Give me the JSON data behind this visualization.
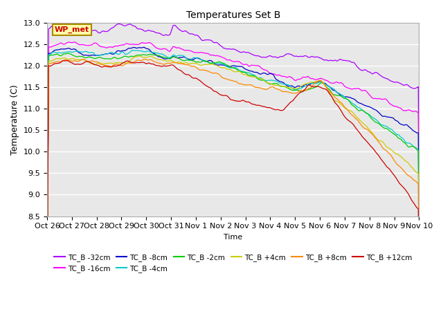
{
  "title": "Temperatures Set B",
  "xlabel": "Time",
  "ylabel": "Temperature (C)",
  "ylim": [
    8.5,
    13.0
  ],
  "background_color": "#ffffff",
  "plot_bg_color": "#e8e8e8",
  "grid_color": "#ffffff",
  "series": [
    {
      "label": "TC_B -32cm",
      "color": "#aa00ff"
    },
    {
      "label": "TC_B -16cm",
      "color": "#ff00ff"
    },
    {
      "label": "TC_B -8cm",
      "color": "#0000cc"
    },
    {
      "label": "TC_B -4cm",
      "color": "#00cccc"
    },
    {
      "label": "TC_B -2cm",
      "color": "#00cc00"
    },
    {
      "label": "TC_B +4cm",
      "color": "#cccc00"
    },
    {
      "label": "TC_B +8cm",
      "color": "#ff8800"
    },
    {
      "label": "TC_B +12cm",
      "color": "#cc0000"
    }
  ],
  "xtick_labels": [
    "Oct 26",
    "Oct 27",
    "Oct 28",
    "Oct 29",
    "Oct 30",
    "Oct 31",
    "Nov 1",
    "Nov 2",
    "Nov 3",
    "Nov 4",
    "Nov 5",
    "Nov 6",
    "Nov 7",
    "Nov 8",
    "Nov 9",
    "Nov 10"
  ],
  "wp_met_label": "WP_met",
  "wp_met_color": "#cc0000",
  "wp_met_bg": "#ffffaa",
  "wp_met_border": "#aa8800",
  "legend_ncol": 6,
  "yticks": [
    8.5,
    9.0,
    9.5,
    10.0,
    10.5,
    11.0,
    11.5,
    12.0,
    12.5,
    13.0
  ]
}
